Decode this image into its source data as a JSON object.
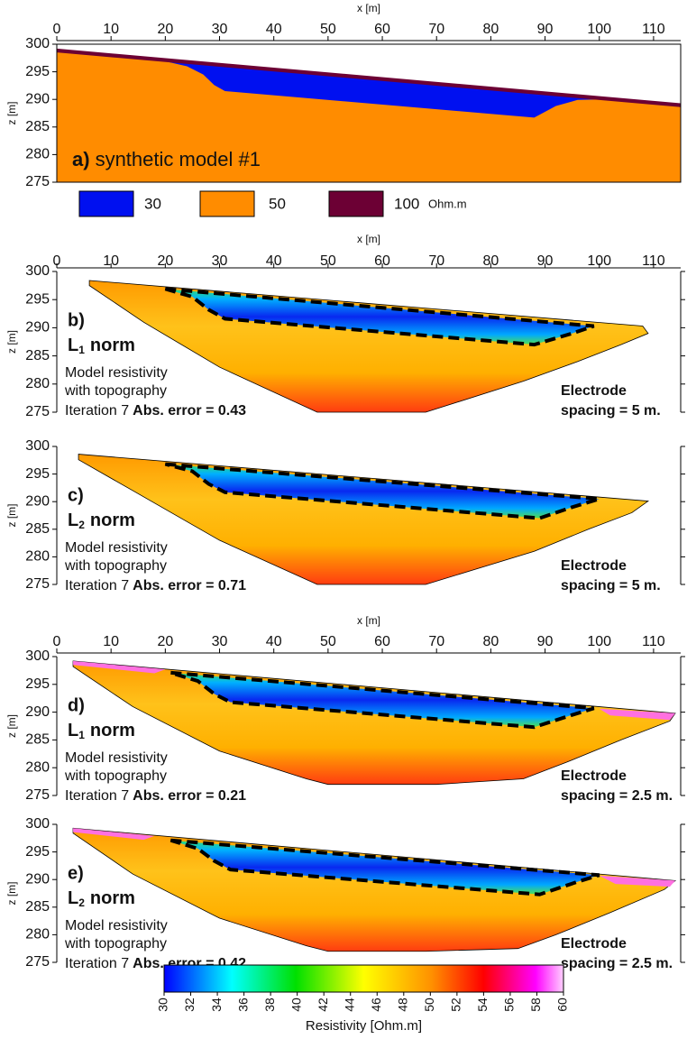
{
  "chart_data": [
    {
      "type": "model",
      "xlabel": "x [m]",
      "ylabel": "z [m]",
      "xlim": [
        0,
        115
      ],
      "xticks": [
        0,
        10,
        20,
        30,
        40,
        50,
        60,
        70,
        80,
        90,
        100,
        110
      ],
      "ylim": [
        275,
        300
      ],
      "yticks": [
        275,
        280,
        285,
        290,
        295,
        300
      ],
      "letter": "a)",
      "caption": "synthetic  model #1",
      "legend": [
        {
          "label": 30,
          "color": "#0010f0"
        },
        {
          "label": 50,
          "color": "#ff8c00"
        },
        {
          "label": 100,
          "color": "#6c0034"
        }
      ],
      "legend_unit": "Ohm.m"
    },
    {
      "type": "section",
      "xlabel": "x [m]",
      "ylabel": "z [m]",
      "xlim": [
        0,
        115
      ],
      "xticks": [
        0,
        10,
        20,
        30,
        40,
        50,
        60,
        70,
        80,
        90,
        100,
        110
      ],
      "ylim": [
        275,
        300
      ],
      "yticks": [
        275,
        280,
        285,
        290,
        295,
        300
      ],
      "letter": "b)",
      "norm": {
        "base": "L",
        "sub": "1",
        "word": "norm"
      },
      "notes": [
        "Model resistivity",
        "with topography"
      ],
      "iteration": "Iteration 7",
      "error": "Abs. error = 0.43",
      "electrode": [
        "Electrode",
        "spacing = 5 m."
      ]
    },
    {
      "type": "section",
      "ylabel": "z [m]",
      "xlim": [
        0,
        115
      ],
      "ylim": [
        275,
        300
      ],
      "yticks": [
        275,
        280,
        285,
        290,
        295,
        300
      ],
      "letter": "c)",
      "norm": {
        "base": "L",
        "sub": "2",
        "word": "norm"
      },
      "notes": [
        "Model resistivity",
        "with topography"
      ],
      "iteration": "Iteration 7",
      "error": "Abs. error = 0.71",
      "electrode": [
        "Electrode",
        "spacing = 5 m."
      ]
    },
    {
      "type": "section",
      "xlabel": "x [m]",
      "ylabel": "z [m]",
      "xlim": [
        0,
        115
      ],
      "xticks": [
        0,
        10,
        20,
        30,
        40,
        50,
        60,
        70,
        80,
        90,
        100,
        110
      ],
      "ylim": [
        275,
        300
      ],
      "yticks": [
        275,
        280,
        285,
        290,
        295,
        300
      ],
      "letter": "d)",
      "norm": {
        "base": "L",
        "sub": "1",
        "word": "norm"
      },
      "notes": [
        "Model resistivity",
        "with topography"
      ],
      "iteration": "Iteration 7",
      "error": "Abs. error = 0.21",
      "electrode": [
        "Electrode",
        "spacing = 2.5 m."
      ]
    },
    {
      "type": "section",
      "ylabel": "z [m]",
      "xlim": [
        0,
        115
      ],
      "ylim": [
        275,
        300
      ],
      "yticks": [
        275,
        280,
        285,
        290,
        295,
        300
      ],
      "letter": "e)",
      "norm": {
        "base": "L",
        "sub": "2",
        "word": "norm"
      },
      "notes": [
        "Model resistivity",
        "with topography"
      ],
      "iteration": "Iteration 7",
      "error": "Abs. error = 0.42",
      "electrode": [
        "Electrode",
        "spacing = 2.5 m."
      ]
    },
    {
      "type": "colorbar",
      "label": "Resistivity [Ohm.m]",
      "lim": [
        30,
        60
      ],
      "ticks": [
        30,
        32,
        34,
        36,
        38,
        40,
        42,
        44,
        46,
        48,
        50,
        52,
        54,
        56,
        58,
        60
      ]
    }
  ]
}
